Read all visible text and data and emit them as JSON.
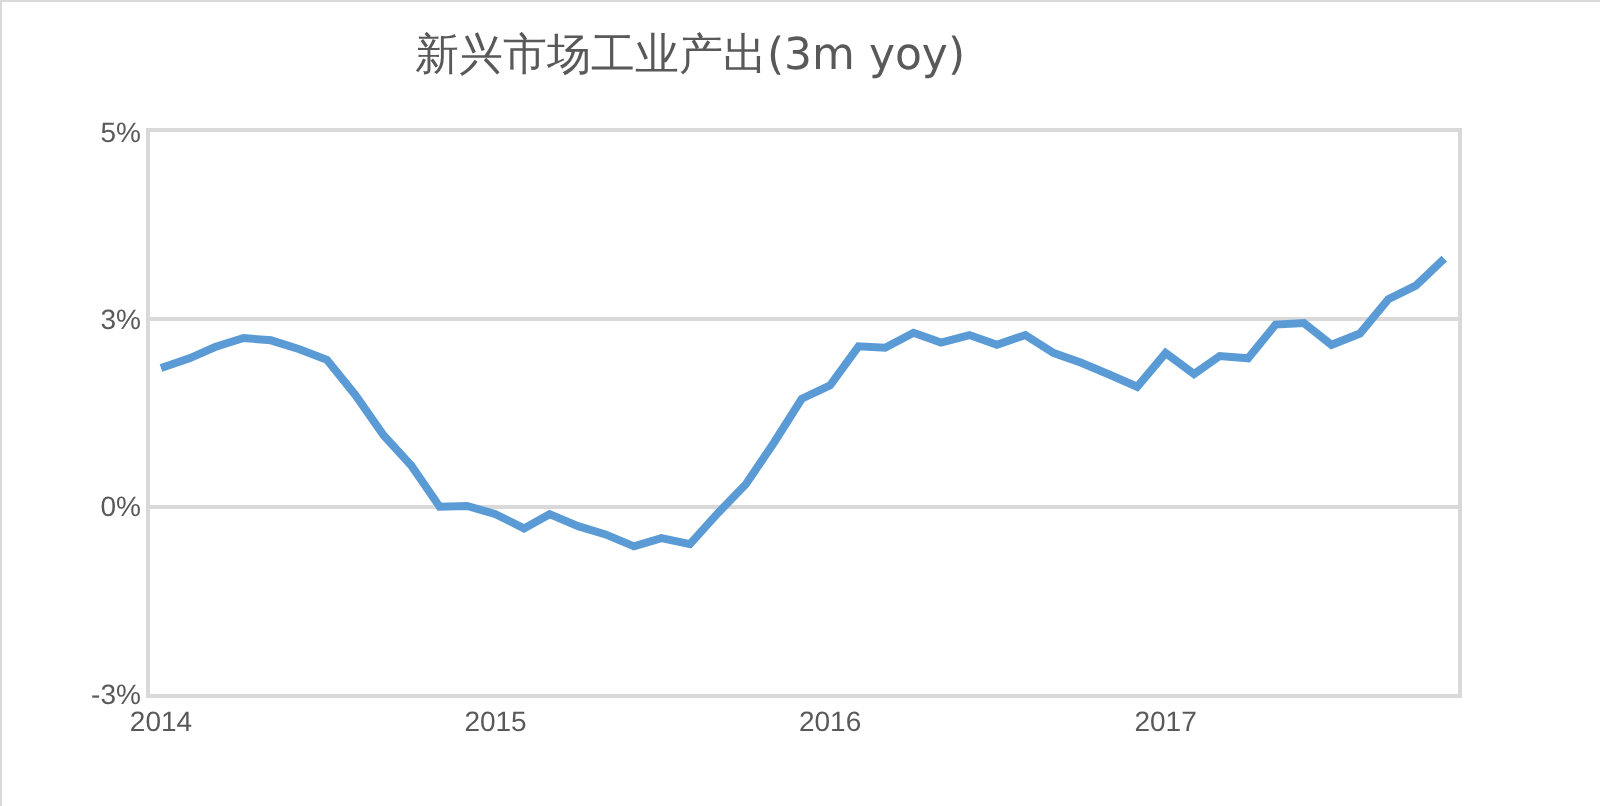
{
  "chart_data": {
    "type": "line",
    "title": "新兴市场工业产出(3m yoy)",
    "x": [
      "2014-01",
      "2014-02",
      "2014-03",
      "2014-04",
      "2014-05",
      "2014-06",
      "2014-07",
      "2014-08",
      "2014-09",
      "2014-10",
      "2014-11",
      "2014-12",
      "2015-01",
      "2015-02",
      "2015-03",
      "2015-04",
      "2015-05",
      "2015-06",
      "2015-07",
      "2015-08",
      "2015-09",
      "2015-10",
      "2015-11",
      "2015-12",
      "2016-01",
      "2016-02",
      "2016-03",
      "2016-04",
      "2016-05",
      "2016-06",
      "2016-07",
      "2016-08",
      "2016-09",
      "2016-10",
      "2016-11",
      "2016-12",
      "2017-01",
      "2017-02",
      "2017-03",
      "2017-04",
      "2017-05",
      "2017-06",
      "2017-07",
      "2017-08",
      "2017-09",
      "2017-10",
      "2017-11"
    ],
    "series": [
      {
        "color": "#5b9bd5",
        "values": [
          1.85,
          1.98,
          2.13,
          2.25,
          2.22,
          2.1,
          1.96,
          1.49,
          0.95,
          0.55,
          0.0,
          0.01,
          -0.1,
          -0.29,
          -0.1,
          -0.26,
          -0.37,
          -0.53,
          -0.42,
          -0.5,
          -0.08,
          0.3,
          0.86,
          1.44,
          1.62,
          2.14,
          2.12,
          2.32,
          2.19,
          2.29,
          2.16,
          2.29,
          2.05,
          1.92,
          1.76,
          1.6,
          2.05,
          1.77,
          2.01,
          1.98,
          2.43,
          2.45,
          2.16,
          2.31,
          2.77,
          2.95,
          3.31
        ]
      }
    ],
    "xlim": [
      "2013-12-20",
      "2017-11-16"
    ],
    "xticks": [
      {
        "value": "2014-01-01",
        "label": "2014"
      },
      {
        "value": "2015-01-01",
        "label": "2015"
      },
      {
        "value": "2016-01-01",
        "label": "2016"
      },
      {
        "value": "2017-01-01",
        "label": "2017"
      }
    ],
    "ylim": [
      -2.5,
      5
    ],
    "yticks": [
      {
        "value": -2.5,
        "label": "-3%"
      },
      {
        "value": 0,
        "label": "0%"
      },
      {
        "value": 2.5,
        "label": "3%"
      },
      {
        "value": 5,
        "label": "5%"
      }
    ],
    "grid": "y",
    "marker": "none",
    "line_style": "solid"
  }
}
